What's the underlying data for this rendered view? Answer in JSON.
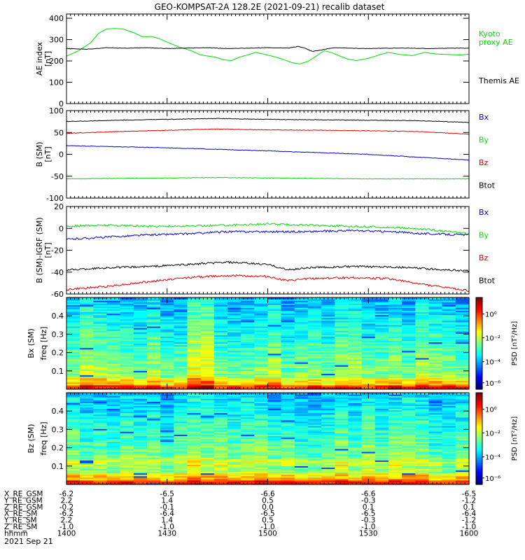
{
  "title": "GEO-KOMPSAT-2A 128.2E (2021-09-21) recalib dataset",
  "footer_date": "2021 Sep 21",
  "colors": {
    "black": "#000000",
    "green": "#00dd00",
    "red": "#dd0000",
    "blue": "#0000cc"
  },
  "chart_data": [
    {
      "type": "line",
      "panel": "AE index",
      "ylabel": "AE index",
      "yunit": "[nT]",
      "ylim": [
        0,
        420
      ],
      "yticks": [
        0,
        100,
        200,
        300,
        400
      ],
      "xlim": [
        "1400",
        "1600"
      ],
      "series": [
        {
          "name": "Kyoto proxy AE",
          "label_lines": [
            "Kyoto",
            "proxy AE"
          ],
          "color": "#00dd00",
          "x": [
            0,
            6,
            12,
            16,
            20,
            24,
            28,
            34,
            38,
            42,
            46,
            50,
            56,
            62,
            66,
            70,
            74,
            78,
            82,
            86,
            90,
            94,
            98,
            104,
            108,
            112,
            116,
            120,
            124,
            128,
            132,
            136,
            140,
            144,
            150,
            156,
            160,
            166,
            172,
            178,
            184,
            190,
            196,
            200
          ],
          "y": [
            222,
            248,
            285,
            330,
            350,
            352,
            350,
            330,
            312,
            315,
            305,
            288,
            265,
            248,
            230,
            223,
            218,
            205,
            202,
            218,
            228,
            240,
            232,
            218,
            206,
            192,
            186,
            198,
            222,
            248,
            238,
            222,
            208,
            202,
            212,
            230,
            240,
            230,
            225,
            240,
            232,
            230,
            228,
            232
          ]
        },
        {
          "name": "Themis AE",
          "label_lines": [
            "Themis AE"
          ],
          "color": "#000000",
          "x": [
            0,
            10,
            20,
            30,
            40,
            50,
            60,
            70,
            80,
            90,
            100,
            110,
            115,
            118,
            122,
            126,
            130,
            134,
            140,
            150,
            160,
            170,
            180,
            190,
            200
          ],
          "y": [
            258,
            255,
            262,
            260,
            262,
            258,
            260,
            262,
            258,
            260,
            262,
            260,
            268,
            262,
            245,
            250,
            258,
            262,
            260,
            258,
            260,
            260,
            258,
            260,
            260
          ]
        }
      ]
    },
    {
      "type": "line",
      "panel": "B (SM)",
      "ylabel": "B (SM)",
      "yunit": "[nT]",
      "ylim": [
        -100,
        100
      ],
      "yticks": [
        -100,
        -50,
        0,
        50,
        100
      ],
      "xlim": [
        "1400",
        "1600"
      ],
      "series": [
        {
          "name": "Bx",
          "color": "#0000cc",
          "x": [
            0,
            50,
            100,
            150,
            200
          ],
          "y": [
            20,
            15,
            8,
            0,
            -13
          ]
        },
        {
          "name": "By",
          "color": "#00dd00",
          "x": [
            0,
            25,
            50,
            75,
            100,
            125,
            150,
            175,
            200
          ],
          "y": [
            -56,
            -55,
            -54,
            -53,
            -54,
            -55,
            -56,
            -56,
            -56
          ]
        },
        {
          "name": "Bz",
          "color": "#dd0000",
          "x": [
            0,
            25,
            50,
            75,
            100,
            125,
            150,
            175,
            200
          ],
          "y": [
            48,
            52,
            55,
            58,
            56,
            55,
            54,
            52,
            46
          ]
        },
        {
          "name": "Btot",
          "color": "#000000",
          "x": [
            0,
            25,
            50,
            75,
            100,
            125,
            150,
            175,
            200
          ],
          "y": [
            75,
            78,
            80,
            82,
            80,
            79,
            78,
            77,
            73
          ]
        }
      ]
    },
    {
      "type": "line",
      "panel": "B (SM)-IGRF (SM)",
      "ylabel": "B (SM)-IGRF (SM)",
      "yunit": "[nT]",
      "ylim": [
        -60,
        20
      ],
      "yticks": [
        -60,
        -40,
        -20,
        0,
        20
      ],
      "xlim": [
        "1400",
        "1600"
      ],
      "series": [
        {
          "name": "Bx",
          "color": "#0000cc",
          "x": [
            0,
            20,
            40,
            60,
            80,
            100,
            120,
            140,
            160,
            180,
            200
          ],
          "y": [
            -10,
            -8,
            -6,
            -5,
            -3,
            -3,
            -3,
            -2,
            -3,
            -5,
            -6
          ]
        },
        {
          "name": "By",
          "color": "#00dd00",
          "x": [
            0,
            20,
            40,
            60,
            80,
            100,
            120,
            140,
            160,
            180,
            190,
            200
          ],
          "y": [
            2,
            3,
            2,
            2,
            3,
            4,
            3,
            2,
            1,
            -1,
            -3,
            -5
          ]
        },
        {
          "name": "Bz",
          "color": "#dd0000",
          "x": [
            0,
            20,
            40,
            60,
            80,
            100,
            110,
            120,
            140,
            160,
            180,
            200
          ],
          "y": [
            -56,
            -53,
            -49,
            -45,
            -43,
            -44,
            -48,
            -46,
            -45,
            -46,
            -52,
            -57
          ]
        },
        {
          "name": "Btot",
          "color": "#000000",
          "x": [
            0,
            20,
            40,
            60,
            80,
            100,
            110,
            120,
            140,
            160,
            180,
            200
          ],
          "y": [
            -38,
            -36,
            -35,
            -33,
            -31,
            -33,
            -38,
            -36,
            -35,
            -35,
            -37,
            -39
          ]
        }
      ]
    },
    {
      "type": "heatmap",
      "panel": "Bx (SM)",
      "ylabel_top": "Bx (SM)",
      "ylabel": "freq [Hz]",
      "ylim": [
        0,
        0.5
      ],
      "yticks": [
        0.1,
        0.2,
        0.3,
        0.4
      ],
      "colorbar_label": "PSD [nT²/Hz]",
      "colorbar_ticks": [
        "10⁰",
        "10⁻²",
        "10⁻⁴",
        "10⁻⁶"
      ]
    },
    {
      "type": "heatmap",
      "panel": "Bz (SM)",
      "ylabel_top": "Bz (SM)",
      "ylabel": "freq [Hz]",
      "ylim": [
        0,
        0.5
      ],
      "yticks": [
        0.1,
        0.2,
        0.3,
        0.4
      ],
      "colorbar_label": "PSD [nT²/Hz]",
      "colorbar_ticks": [
        "10⁰",
        "10⁻²",
        "10⁻⁴",
        "10⁻⁶"
      ]
    }
  ],
  "ephemeris": {
    "row_labels": [
      "X_RE_GSM",
      "Y_RE_GSM",
      "Z_RE_GSM",
      "X_RE_SM",
      "Y_RE_SM",
      "Z_RE_SM",
      "hhmm"
    ],
    "columns": [
      [
        "-6.2",
        "2.2",
        "-0.2",
        "-6.2",
        "2.2",
        "-1.0",
        "1400"
      ],
      [
        "-6.5",
        "1.4",
        "-0.1",
        "-6.4",
        "1.4",
        "-1.0",
        "1430"
      ],
      [
        "-6.6",
        "0.5",
        "0.0",
        "-6.5",
        "0.5",
        "-1.0",
        "1500"
      ],
      [
        "-6.6",
        "-0.3",
        "0.1",
        "-6.5",
        "-0.3",
        "-1.0",
        "1530"
      ],
      [
        "-6.5",
        "-1.2",
        "0.1",
        "-6.4",
        "-1.2",
        "-1.0",
        "1600"
      ]
    ]
  }
}
